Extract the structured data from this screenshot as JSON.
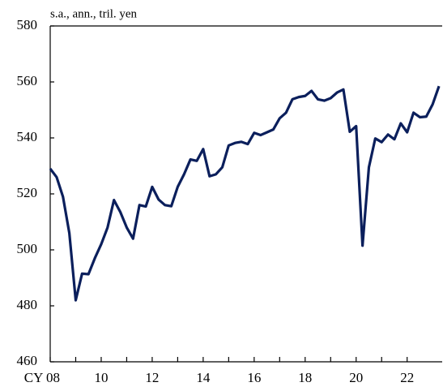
{
  "chart_data": {
    "type": "line",
    "title": "s.a., ann., tril. yen",
    "x": [
      2008,
      2008.25,
      2008.5,
      2008.75,
      2009,
      2009.25,
      2009.5,
      2009.75,
      2010,
      2010.25,
      2010.5,
      2010.75,
      2011,
      2011.25,
      2011.5,
      2011.75,
      2012,
      2012.25,
      2012.5,
      2012.75,
      2013,
      2013.25,
      2013.5,
      2013.75,
      2014,
      2014.25,
      2014.5,
      2014.75,
      2015,
      2015.25,
      2015.5,
      2015.75,
      2016,
      2016.25,
      2016.5,
      2016.75,
      2017,
      2017.25,
      2017.5,
      2017.75,
      2018,
      2018.25,
      2018.5,
      2018.75,
      2019,
      2019.25,
      2019.5,
      2019.75,
      2020,
      2020.25,
      2020.5,
      2020.75,
      2021,
      2021.25,
      2021.5,
      2021.75,
      2022,
      2022.25,
      2022.5,
      2022.75,
      2023,
      2023.25
    ],
    "series": [
      {
        "color": "#0b1f5c",
        "values": [
          529,
          526,
          519,
          506,
          482,
          491.5,
          491.3,
          497,
          502,
          508,
          517.8,
          513.5,
          508,
          504,
          516,
          515.5,
          522.5,
          518,
          516,
          515.6,
          522.5,
          527,
          532.3,
          531.8,
          536,
          526.3,
          527,
          529.5,
          537.3,
          538.2,
          538.6,
          537.8,
          541.8,
          541,
          542,
          543,
          547,
          549,
          553.8,
          554.6,
          555,
          556.8,
          553.8,
          553.3,
          554.2,
          556.2,
          557.3,
          542.2,
          544.2,
          501.5,
          529.5,
          539.8,
          538.5,
          541.2,
          539.5,
          545.2,
          542,
          549,
          547.4,
          547.6,
          552,
          558.5
        ]
      }
    ],
    "xlim": [
      2008,
      2023.375
    ],
    "xticks": [
      {
        "value": 2008,
        "label": "CY 08"
      },
      {
        "value": 2010,
        "label": "10"
      },
      {
        "value": 2012,
        "label": "12"
      },
      {
        "value": 2014,
        "label": "14"
      },
      {
        "value": 2016,
        "label": "16"
      },
      {
        "value": 2018,
        "label": "18"
      },
      {
        "value": 2020,
        "label": "20"
      },
      {
        "value": 2022,
        "label": "22"
      }
    ],
    "ylim": [
      460,
      580
    ],
    "yticks": [
      460,
      480,
      500,
      520,
      540,
      560,
      580
    ]
  }
}
